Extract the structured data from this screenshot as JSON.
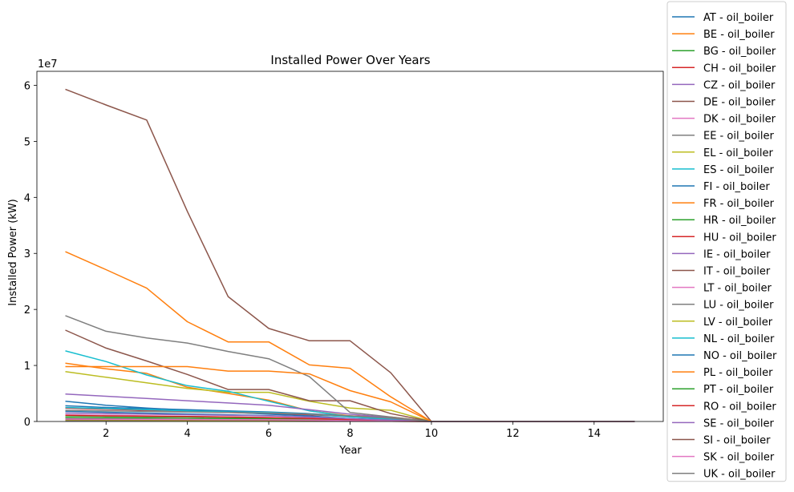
{
  "chart_data": {
    "type": "line",
    "title": "Installed Power Over Years",
    "xlabel": "Year",
    "ylabel": "Installed Power (kW)",
    "y_offset_text": "1e7",
    "y_scale": 10000000,
    "xlim": [
      0.3,
      15.7
    ],
    "ylim": [
      0,
      62500000
    ],
    "x_ticks": [
      2,
      4,
      6,
      8,
      10,
      12,
      14
    ],
    "y_ticks": [
      0,
      10000000,
      20000000,
      30000000,
      40000000,
      50000000,
      60000000
    ],
    "grid": false,
    "legend_position": "outside-right",
    "x": [
      1,
      2,
      3,
      4,
      5,
      6,
      7,
      8,
      9,
      10,
      11,
      12,
      13,
      14,
      15
    ],
    "series": [
      {
        "name": "AT - oil_boiler",
        "color": "#1f77b4",
        "values": [
          2800000,
          2500000,
          2300000,
          2100000,
          1900000,
          1700000,
          1400000,
          1000000,
          600000,
          0,
          0,
          0,
          0,
          0,
          0
        ]
      },
      {
        "name": "BE - oil_boiler",
        "color": "#ff7f0e",
        "values": [
          10400000,
          9400000,
          8600000,
          6100000,
          5000000,
          3800000,
          1900000,
          1000000,
          800000,
          0,
          0,
          0,
          0,
          0,
          0
        ]
      },
      {
        "name": "BG - oil_boiler",
        "color": "#2ca02c",
        "values": [
          200000,
          190000,
          180000,
          170000,
          160000,
          150000,
          120000,
          80000,
          40000,
          0,
          0,
          0,
          0,
          0,
          0
        ]
      },
      {
        "name": "CH - oil_boiler",
        "color": "#d62728",
        "values": [
          2400000,
          2200000,
          2000000,
          1800000,
          1600000,
          1400000,
          1200000,
          900000,
          500000,
          0,
          0,
          0,
          0,
          0,
          0
        ]
      },
      {
        "name": "CZ - oil_boiler",
        "color": "#9467bd",
        "values": [
          600000,
          550000,
          500000,
          450000,
          400000,
          350000,
          300000,
          200000,
          100000,
          0,
          0,
          0,
          0,
          0,
          0
        ]
      },
      {
        "name": "DE - oil_boiler",
        "color": "#8c564b",
        "values": [
          59300000,
          56500000,
          53800000,
          37500000,
          22300000,
          16600000,
          14400000,
          14400000,
          8700000,
          0,
          0,
          0,
          0,
          0,
          0
        ]
      },
      {
        "name": "DK - oil_boiler",
        "color": "#e377c2",
        "values": [
          1200000,
          1100000,
          1000000,
          900000,
          800000,
          700000,
          600000,
          400000,
          200000,
          0,
          0,
          0,
          0,
          0,
          0
        ]
      },
      {
        "name": "EE - oil_boiler",
        "color": "#7f7f7f",
        "values": [
          150000,
          140000,
          130000,
          120000,
          110000,
          100000,
          80000,
          60000,
          30000,
          0,
          0,
          0,
          0,
          0,
          0
        ]
      },
      {
        "name": "EL - oil_boiler",
        "color": "#bcbd22",
        "values": [
          8900000,
          7900000,
          6900000,
          5900000,
          5200000,
          5200000,
          3600000,
          2400000,
          2000000,
          0,
          0,
          0,
          0,
          0,
          0
        ]
      },
      {
        "name": "ES - oil_boiler",
        "color": "#17becf",
        "values": [
          12600000,
          10700000,
          8300000,
          6400000,
          5400000,
          3600000,
          1900000,
          900000,
          600000,
          0,
          0,
          0,
          0,
          0,
          0
        ]
      },
      {
        "name": "FI - oil_boiler",
        "color": "#1f77b4",
        "values": [
          3600000,
          2900000,
          2400000,
          2000000,
          1700000,
          1300000,
          1000000,
          500000,
          300000,
          0,
          0,
          0,
          0,
          0,
          0
        ]
      },
      {
        "name": "FR - oil_boiler",
        "color": "#ff7f0e",
        "values": [
          30300000,
          27100000,
          23800000,
          17800000,
          14200000,
          14200000,
          10100000,
          9500000,
          4400000,
          0,
          0,
          0,
          0,
          0,
          0
        ]
      },
      {
        "name": "HR - oil_boiler",
        "color": "#2ca02c",
        "values": [
          700000,
          650000,
          600000,
          550000,
          500000,
          450000,
          400000,
          250000,
          120000,
          0,
          0,
          0,
          0,
          0,
          0
        ]
      },
      {
        "name": "HU - oil_boiler",
        "color": "#d62728",
        "values": [
          400000,
          380000,
          360000,
          340000,
          320000,
          300000,
          250000,
          150000,
          80000,
          0,
          0,
          0,
          0,
          0,
          0
        ]
      },
      {
        "name": "IE - oil_boiler",
        "color": "#9467bd",
        "values": [
          4900000,
          4500000,
          4100000,
          3700000,
          3300000,
          2900000,
          2100000,
          1300000,
          700000,
          0,
          0,
          0,
          0,
          0,
          0
        ]
      },
      {
        "name": "IT - oil_boiler",
        "color": "#8c564b",
        "values": [
          16300000,
          13100000,
          10800000,
          8400000,
          5700000,
          5700000,
          3700000,
          3700000,
          1400000,
          0,
          0,
          0,
          0,
          0,
          0
        ]
      },
      {
        "name": "LT - oil_boiler",
        "color": "#e377c2",
        "values": [
          300000,
          280000,
          260000,
          240000,
          220000,
          200000,
          160000,
          100000,
          50000,
          0,
          0,
          0,
          0,
          0,
          0
        ]
      },
      {
        "name": "LU - oil_boiler",
        "color": "#7f7f7f",
        "values": [
          18900000,
          16100000,
          14900000,
          14000000,
          12500000,
          11200000,
          8000000,
          1600000,
          800000,
          0,
          0,
          0,
          0,
          0,
          0
        ]
      },
      {
        "name": "LV - oil_boiler",
        "color": "#bcbd22",
        "values": [
          250000,
          230000,
          210000,
          190000,
          170000,
          150000,
          120000,
          80000,
          40000,
          0,
          0,
          0,
          0,
          0,
          0
        ]
      },
      {
        "name": "NL - oil_boiler",
        "color": "#17becf",
        "values": [
          2500000,
          2300000,
          2100000,
          1900000,
          1700000,
          1600000,
          1300000,
          800000,
          400000,
          0,
          0,
          0,
          0,
          0,
          0
        ]
      },
      {
        "name": "NO - oil_boiler",
        "color": "#1f77b4",
        "values": [
          1800000,
          1650000,
          1500000,
          1350000,
          1200000,
          1050000,
          800000,
          500000,
          250000,
          0,
          0,
          0,
          0,
          0,
          0
        ]
      },
      {
        "name": "PL - oil_boiler",
        "color": "#ff7f0e",
        "values": [
          9800000,
          9800000,
          9800000,
          9800000,
          9000000,
          9000000,
          8500000,
          5500000,
          3500000,
          0,
          0,
          0,
          0,
          0,
          0
        ]
      },
      {
        "name": "PT - oil_boiler",
        "color": "#2ca02c",
        "values": [
          1000000,
          900000,
          850000,
          800000,
          700000,
          600000,
          500000,
          300000,
          150000,
          0,
          0,
          0,
          0,
          0,
          0
        ]
      },
      {
        "name": "RO - oil_boiler",
        "color": "#d62728",
        "values": [
          1100000,
          1000000,
          950000,
          900000,
          800000,
          700000,
          550000,
          350000,
          180000,
          0,
          0,
          0,
          0,
          0,
          0
        ]
      },
      {
        "name": "SE - oil_boiler",
        "color": "#9467bd",
        "values": [
          1500000,
          1400000,
          1300000,
          1200000,
          1100000,
          1000000,
          800000,
          500000,
          250000,
          0,
          0,
          0,
          0,
          0,
          0
        ]
      },
      {
        "name": "SI - oil_boiler",
        "color": "#8c564b",
        "values": [
          350000,
          330000,
          310000,
          290000,
          270000,
          250000,
          200000,
          120000,
          60000,
          0,
          0,
          0,
          0,
          0,
          0
        ]
      },
      {
        "name": "SK - oil_boiler",
        "color": "#e377c2",
        "values": [
          450000,
          420000,
          390000,
          360000,
          330000,
          300000,
          240000,
          150000,
          75000,
          0,
          0,
          0,
          0,
          0,
          0
        ]
      },
      {
        "name": "UK - oil_boiler",
        "color": "#7f7f7f",
        "values": [
          2000000,
          1900000,
          1800000,
          1700000,
          1600000,
          1500000,
          1300000,
          1000000,
          600000,
          0,
          0,
          0,
          0,
          0,
          0
        ]
      }
    ]
  }
}
